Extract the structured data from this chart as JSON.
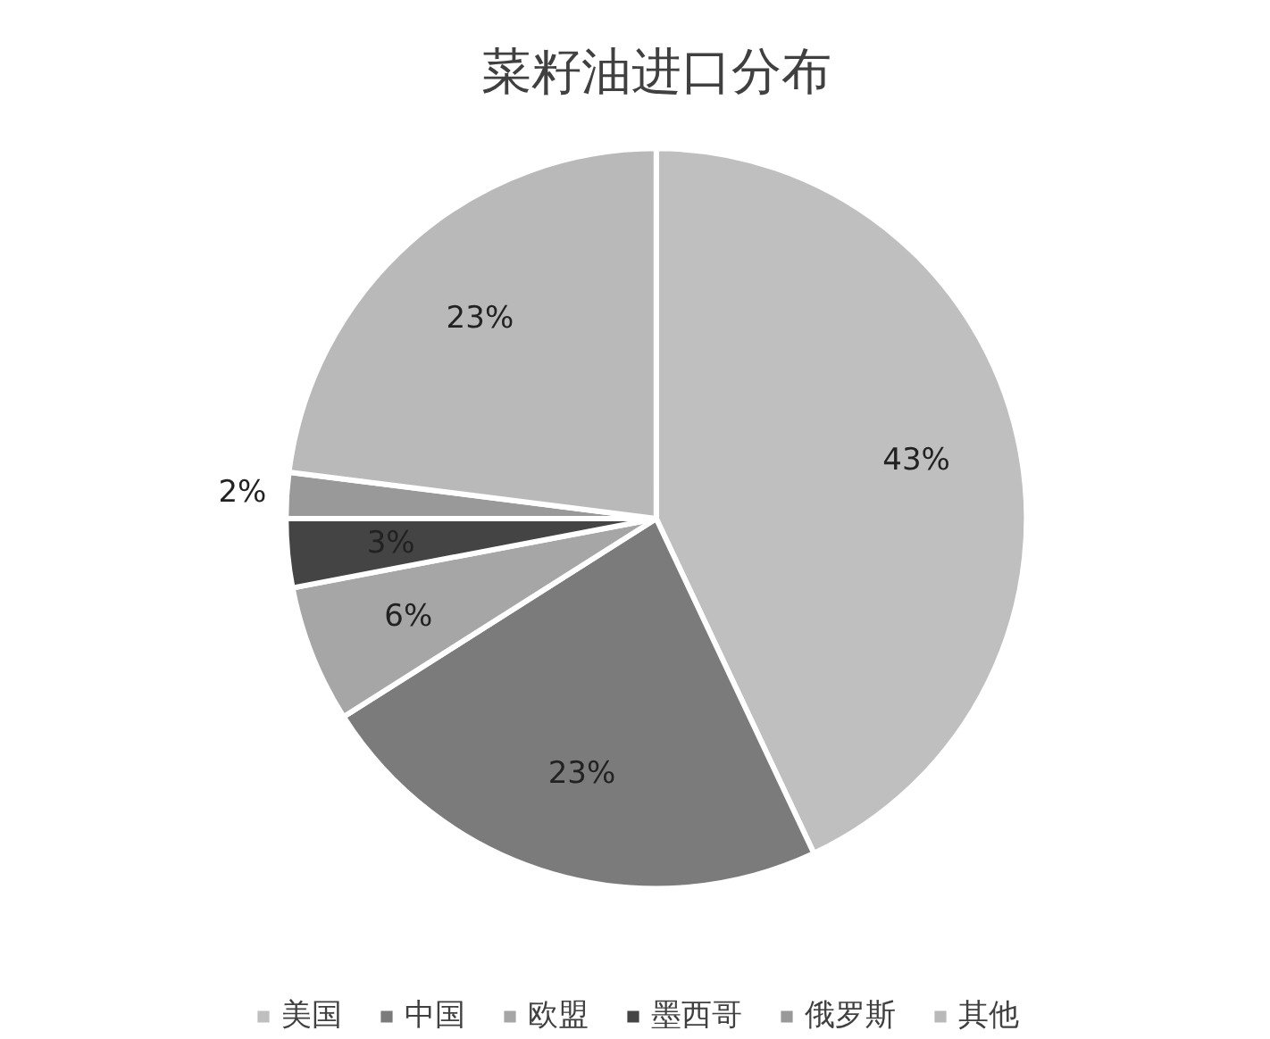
{
  "chart_data": {
    "type": "pie",
    "title": "菜籽油进口分布",
    "categories": [
      "美国",
      "中国",
      "欧盟",
      "墨西哥",
      "俄罗斯",
      "其他"
    ],
    "values": [
      43,
      23,
      6,
      3,
      2,
      23
    ],
    "colors": [
      "#bfbfbf",
      "#7b7b7b",
      "#a6a6a6",
      "#444444",
      "#999999",
      "#b9b9b9"
    ],
    "value_labels": [
      "43%",
      "23%",
      "6%",
      "3%",
      "2%",
      "23%"
    ],
    "legend": "bottom"
  }
}
